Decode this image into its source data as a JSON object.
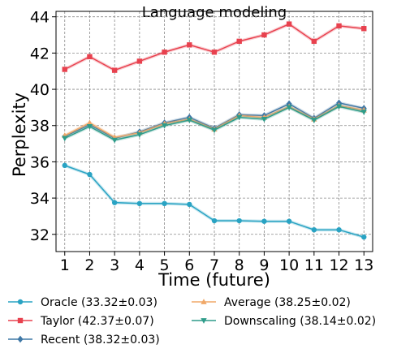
{
  "chart_data": {
    "type": "line",
    "title": "Language modeling",
    "xlabel": "Time (future)",
    "ylabel": "Perplexity",
    "x": [
      1,
      2,
      3,
      4,
      5,
      6,
      7,
      8,
      9,
      10,
      11,
      12,
      13
    ],
    "xlim": [
      0.65,
      13.35
    ],
    "ylim": [
      31.05,
      44.3
    ],
    "yticks": [
      32,
      34,
      36,
      38,
      40,
      42,
      44
    ],
    "grid": true,
    "legend_position": "below",
    "series": [
      {
        "name": "Oracle (33.32±0.03)",
        "color": "#29a3c3",
        "marker": "circle",
        "values": [
          35.8,
          35.3,
          33.75,
          33.7,
          33.7,
          33.65,
          32.75,
          32.75,
          32.72,
          32.72,
          32.25,
          32.25,
          31.85
        ]
      },
      {
        "name": "Taylor (42.37±0.07)",
        "color": "#e8414e",
        "marker": "square",
        "values": [
          41.1,
          41.8,
          41.05,
          41.55,
          42.05,
          42.45,
          42.05,
          42.65,
          43.0,
          43.6,
          42.65,
          43.5,
          43.35
        ]
      },
      {
        "name": "Recent (38.32±0.03)",
        "color": "#3f78a6",
        "marker": "diamond",
        "values": [
          37.4,
          38.05,
          37.3,
          37.65,
          38.15,
          38.45,
          37.85,
          38.6,
          38.55,
          39.2,
          38.4,
          39.25,
          38.95
        ]
      },
      {
        "name": "Average (38.25±0.02)",
        "color": "#f0a868",
        "marker": "triangle-up",
        "values": [
          37.45,
          38.15,
          37.35,
          37.6,
          38.1,
          38.35,
          37.8,
          38.55,
          38.45,
          39.05,
          38.35,
          39.1,
          38.85
        ]
      },
      {
        "name": "Downscaling (38.14±0.02)",
        "color": "#2e9c8a",
        "marker": "triangle-down",
        "values": [
          37.3,
          37.95,
          37.2,
          37.5,
          38.0,
          38.3,
          37.75,
          38.45,
          38.35,
          39.0,
          38.3,
          39.05,
          38.75
        ]
      }
    ]
  }
}
